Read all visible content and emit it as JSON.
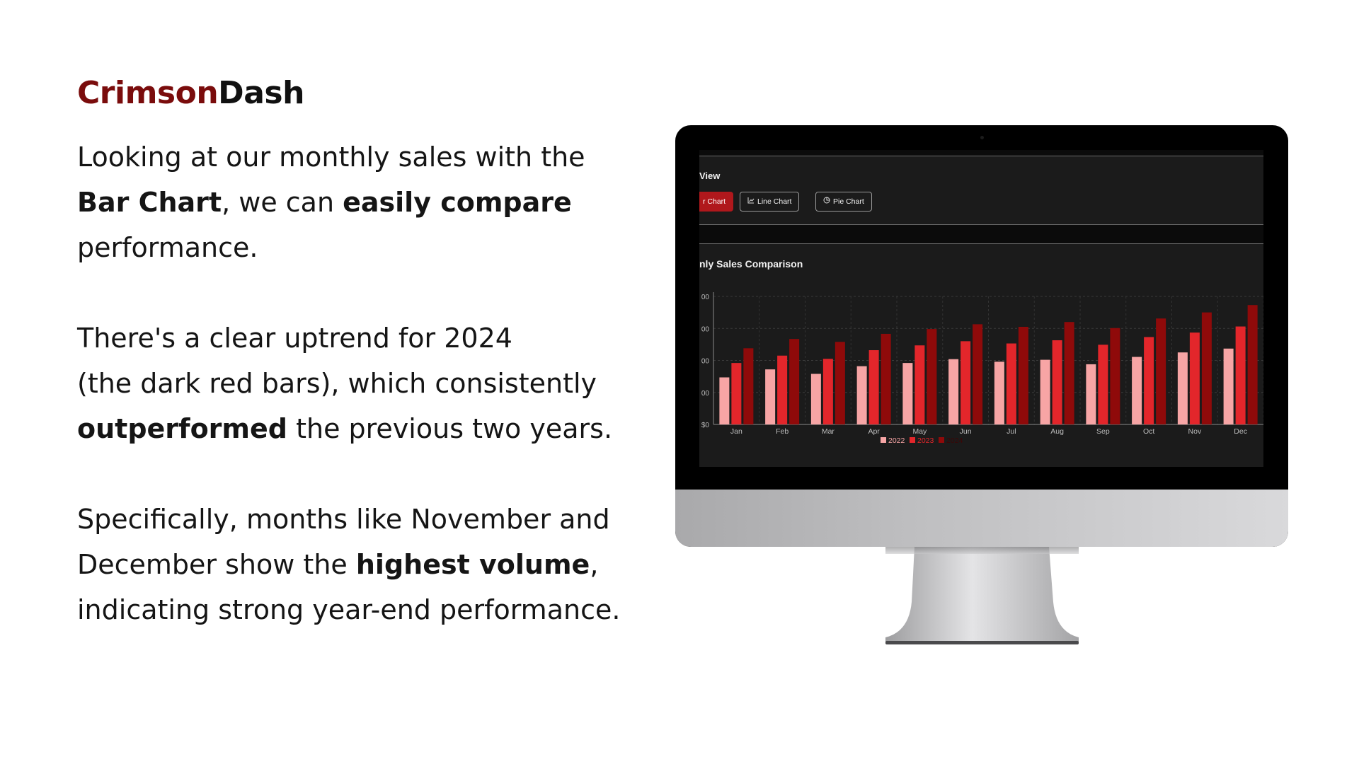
{
  "brand": {
    "part1": "Crimson",
    "part2": "Dash"
  },
  "copy": {
    "p1": {
      "t1": "Looking at our monthly sales with the",
      "b1": "Bar Chart",
      "t2": ", we can ",
      "b2": "easily compare",
      "t3": "performance."
    },
    "p2": {
      "t1": "There's a clear uptrend for 2024",
      "t2": "(the dark red bars), which consistently",
      "b1": "outperformed",
      "t3": " the previous two years."
    },
    "p3": {
      "t1": "Specifically, months like November and",
      "t2": "December show the ",
      "b1": "highest volume",
      "t3": ",",
      "t4": "indicating strong year-end performance."
    }
  },
  "screen": {
    "view_title": "View",
    "buttons": [
      {
        "label": "r Chart",
        "icon": "bar-chart-icon"
      },
      {
        "label": "Line Chart",
        "icon": "line-chart-icon"
      },
      {
        "label": "Pie Chart",
        "icon": "pie-chart-icon"
      }
    ],
    "chart_title": "nly Sales Comparison"
  },
  "colors": {
    "brand_red": "#7a0c0c",
    "s2022": "#f7a5a5",
    "s2023": "#e3262b",
    "s2024": "#8f0a0a"
  },
  "chart_data": {
    "type": "bar",
    "categories": [
      "Jan",
      "Feb",
      "Mar",
      "Apr",
      "May",
      "Jun",
      "Jul",
      "Aug",
      "Sep",
      "Oct",
      "Nov",
      "Dec"
    ],
    "y_ticks": [
      "00",
      "00",
      "00",
      "00",
      "$0"
    ],
    "ylim": [
      0,
      4
    ],
    "series": [
      {
        "name": "2022",
        "color": "#f7a5a5",
        "values": [
          1.47,
          1.72,
          1.58,
          1.82,
          1.92,
          2.04,
          1.96,
          2.02,
          1.88,
          2.11,
          2.25,
          2.37
        ]
      },
      {
        "name": "2023",
        "color": "#e3262b",
        "values": [
          1.92,
          2.15,
          2.05,
          2.32,
          2.47,
          2.6,
          2.53,
          2.63,
          2.49,
          2.73,
          2.87,
          3.06
        ]
      },
      {
        "name": "2024",
        "color": "#8f0a0a",
        "values": [
          2.38,
          2.67,
          2.58,
          2.83,
          2.98,
          3.13,
          3.05,
          3.2,
          3.01,
          3.31,
          3.5,
          3.73
        ]
      }
    ],
    "legend": "bottom",
    "grid": true
  }
}
